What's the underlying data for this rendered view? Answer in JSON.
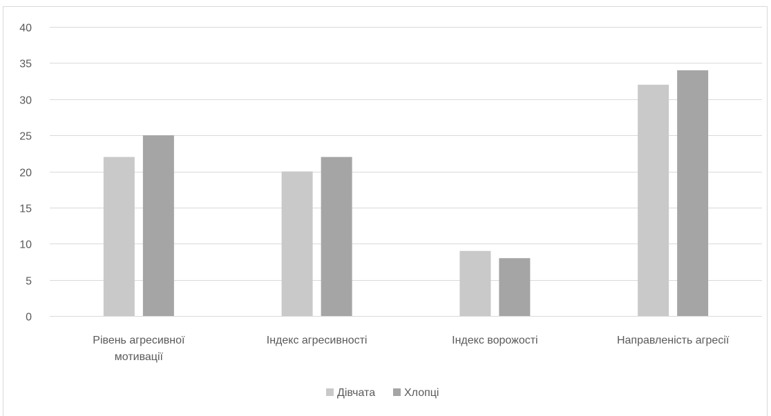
{
  "chart_data": {
    "type": "bar",
    "categories": [
      [
        "Рівень агресивної",
        "мотивації"
      ],
      [
        "Індекс агресивності"
      ],
      [
        "Індекс ворожості"
      ],
      [
        "Направленість агресії"
      ]
    ],
    "series": [
      {
        "name": "Дівчата",
        "values": [
          22,
          20,
          9,
          32
        ],
        "color": "#c9c9c9"
      },
      {
        "name": "Хлопці",
        "values": [
          25,
          22,
          8,
          34
        ],
        "color": "#a5a5a5"
      }
    ],
    "ylim": [
      0,
      40
    ],
    "yticks": [
      "0",
      "5",
      "10",
      "15",
      "20",
      "25",
      "30",
      "35",
      "40"
    ],
    "grid": true,
    "legend_position": "bottom",
    "colors": {
      "grid": "#d9d9d9",
      "text": "#595959",
      "border": "#d9d9d9"
    }
  }
}
